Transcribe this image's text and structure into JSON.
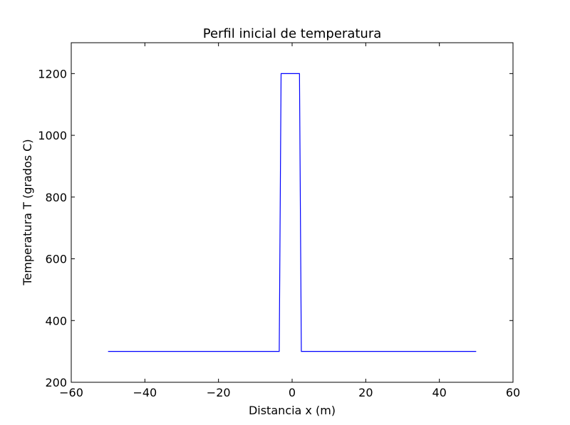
{
  "chart_data": {
    "type": "line",
    "title": "Perfil inicial de temperatura",
    "xlabel": "Distancia x (m)",
    "ylabel": "Temperatura T (grados C)",
    "xlim": [
      -60,
      60
    ],
    "ylim": [
      200,
      1300
    ],
    "xticks": [
      -60,
      -40,
      -20,
      0,
      20,
      40,
      60
    ],
    "yticks": [
      200,
      400,
      600,
      800,
      1000,
      1200
    ],
    "xtick_labels": [
      "−60",
      "−40",
      "−20",
      "0",
      "20",
      "40",
      "60"
    ],
    "ytick_labels": [
      "200",
      "400",
      "600",
      "800",
      "1000",
      "1200"
    ],
    "grid": false,
    "series": [
      {
        "color": "#0000ff",
        "x": [
          -50,
          -3.5,
          -3,
          2,
          2.5,
          50
        ],
        "y": [
          300,
          300,
          1200,
          1200,
          300,
          300
        ]
      }
    ]
  }
}
